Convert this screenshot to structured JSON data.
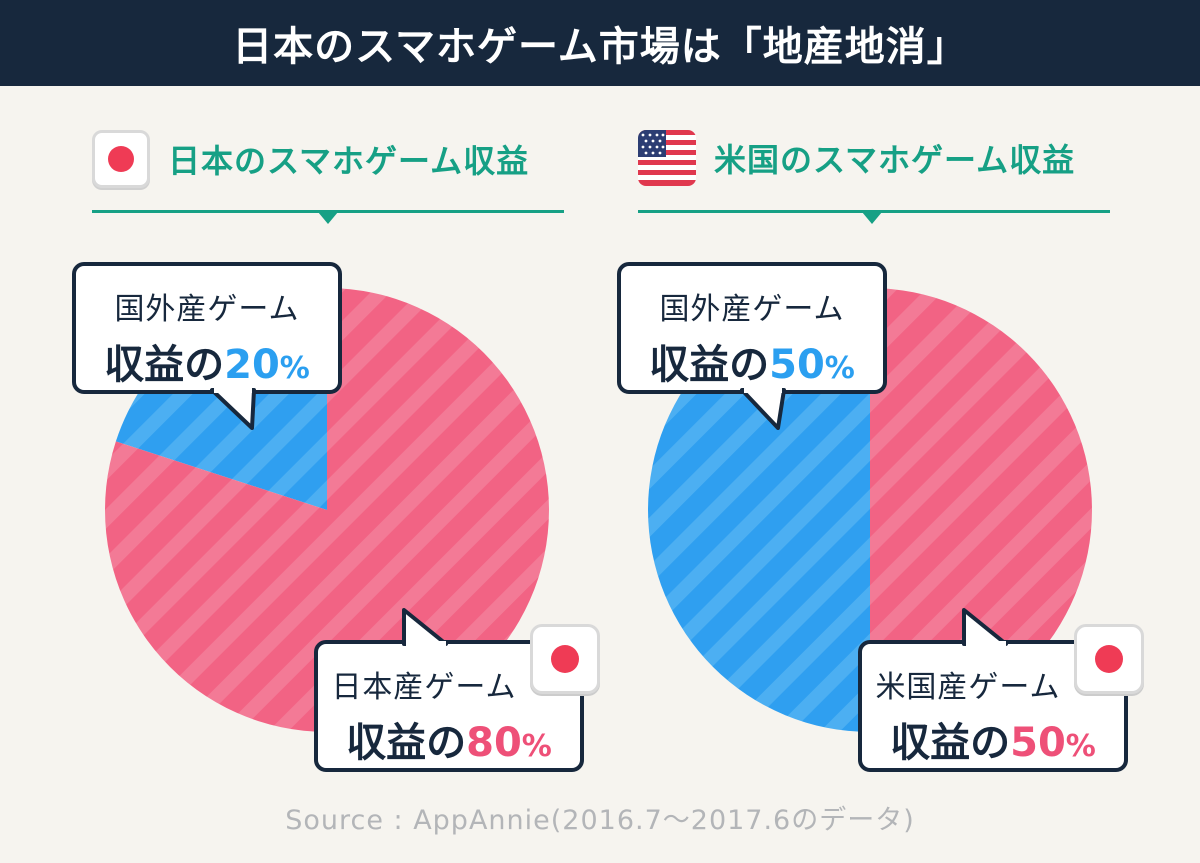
{
  "title": "日本のスマホゲーム市場は「地産地消」",
  "source": "Source : AppAnnie(2016.7〜2017.6のデータ)",
  "colors": {
    "domestic": "#f26384",
    "foreign": "#2f9ff0",
    "accent": "#16a085",
    "navy": "#17283d"
  },
  "chart_data": [
    {
      "type": "pie",
      "title": "日本のスマホゲーム収益",
      "flag": "japan-flag-icon",
      "slices": [
        {
          "label": "国外産ゲーム",
          "value": 20,
          "color": "#2f9ff0"
        },
        {
          "label": "日本産ゲーム",
          "value": 80,
          "color": "#f26384"
        }
      ]
    },
    {
      "type": "pie",
      "title": "米国のスマホゲーム収益",
      "flag": "usa-flag-icon",
      "slices": [
        {
          "label": "国外産ゲーム",
          "value": 50,
          "color": "#2f9ff0"
        },
        {
          "label": "米国産ゲーム",
          "value": 50,
          "color": "#f26384"
        }
      ]
    }
  ],
  "callouts": {
    "left_foreign": {
      "line1": "国外産ゲーム",
      "prefix": "収益の",
      "value": "20",
      "unit": "%"
    },
    "left_domestic": {
      "line1": "日本産ゲーム",
      "prefix": "収益の",
      "value": "80",
      "unit": "%"
    },
    "right_foreign": {
      "line1": "国外産ゲーム",
      "prefix": "収益の",
      "value": "50",
      "unit": "%"
    },
    "right_domestic": {
      "line1": "米国産ゲーム",
      "prefix": "収益の",
      "value": "50",
      "unit": "%"
    }
  }
}
